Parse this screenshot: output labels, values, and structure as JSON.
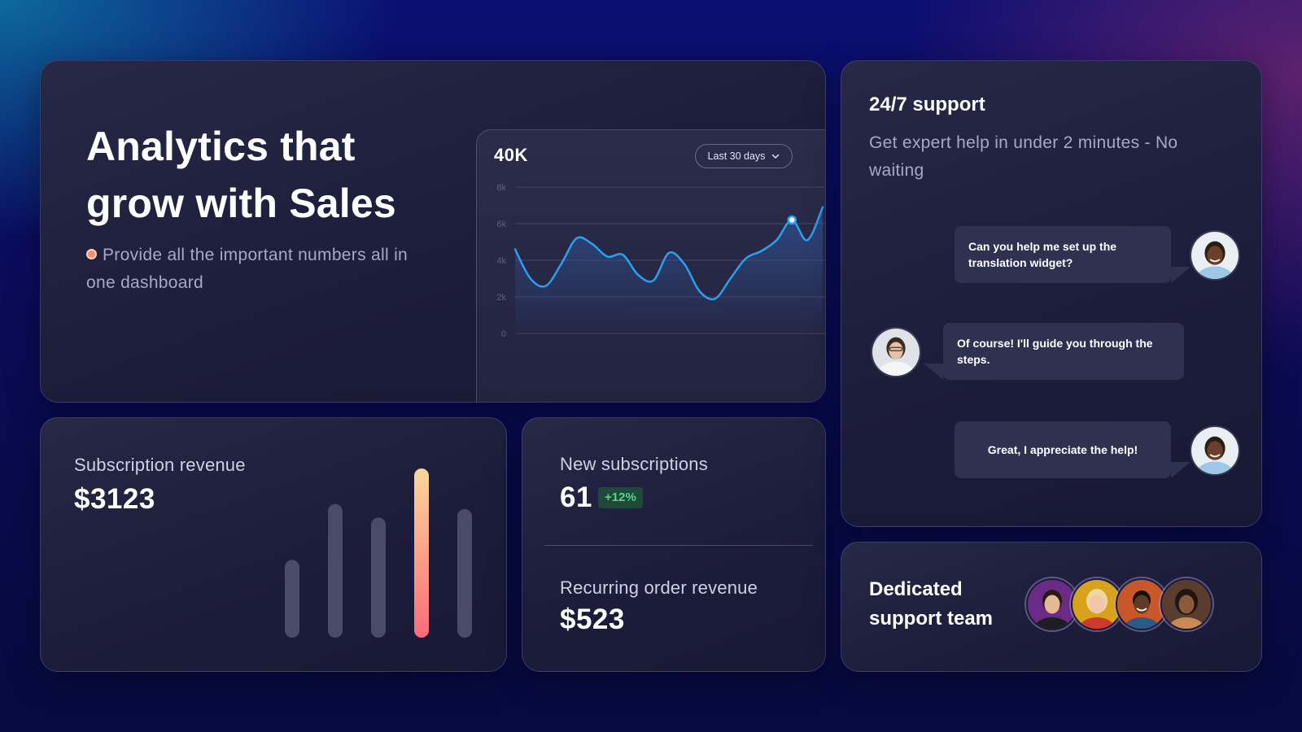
{
  "analytics": {
    "title": "Analytics that grow with Sales",
    "description": "Provide all the important numbers all in one dashboard",
    "chart_total": "40K",
    "range_select": "Last 30 days"
  },
  "chart_data": {
    "type": "area",
    "title": "",
    "xlabel": "",
    "ylabel": "",
    "y_ticks": [
      "8k",
      "6k",
      "4k",
      "2k",
      "0"
    ],
    "ylim": [
      0,
      8000
    ],
    "x": [
      0,
      1,
      2,
      3,
      4,
      5,
      6,
      7,
      8,
      9,
      10,
      11,
      12,
      13,
      14,
      15,
      16,
      17,
      18,
      19,
      20
    ],
    "series": [
      {
        "values": [
          4600,
          3000,
          2600,
          3800,
          5200,
          4900,
          4200,
          4300,
          3200,
          2900,
          4400,
          3800,
          2300,
          1900,
          3000,
          4100,
          4500,
          5100,
          6200,
          5100,
          6900
        ]
      }
    ],
    "highlighted_point": {
      "x": 18,
      "y": 6200
    },
    "grid": true,
    "line_color": "#2aa0f0",
    "fill_color": "#3460b0"
  },
  "subscription": {
    "label": "Subscription revenue",
    "value": "$3123",
    "bars": [
      {
        "value": 0.46,
        "highlight": false
      },
      {
        "value": 0.79,
        "highlight": false
      },
      {
        "value": 0.71,
        "highlight": false
      },
      {
        "value": 1.0,
        "highlight": true
      },
      {
        "value": 0.76,
        "highlight": false
      }
    ],
    "bar_color": "#4a4b68",
    "highlight_gradient": [
      "#fbd79a",
      "#fb6b78"
    ]
  },
  "stats": {
    "new_subscriptions_label": "New subscriptions",
    "new_subscriptions_value": "61",
    "new_subscriptions_change": "+12%",
    "recurring_label": "Recurring order revenue",
    "recurring_value": "$523"
  },
  "support": {
    "title": "24/7 support",
    "description": "Get expert help in under 2 minutes - No waiting",
    "messages": [
      {
        "text": "Can you help me set up the translation widget?",
        "side": "right"
      },
      {
        "text": "Of course! I'll guide you through the steps.",
        "side": "left"
      },
      {
        "text": "Great, I appreciate the help!",
        "side": "right"
      }
    ]
  },
  "team": {
    "title": "Dedicated support team",
    "avatar_bg_colors": [
      "#6a2a86",
      "#d8a21c",
      "#c8582a",
      "#5a3d2e"
    ]
  }
}
